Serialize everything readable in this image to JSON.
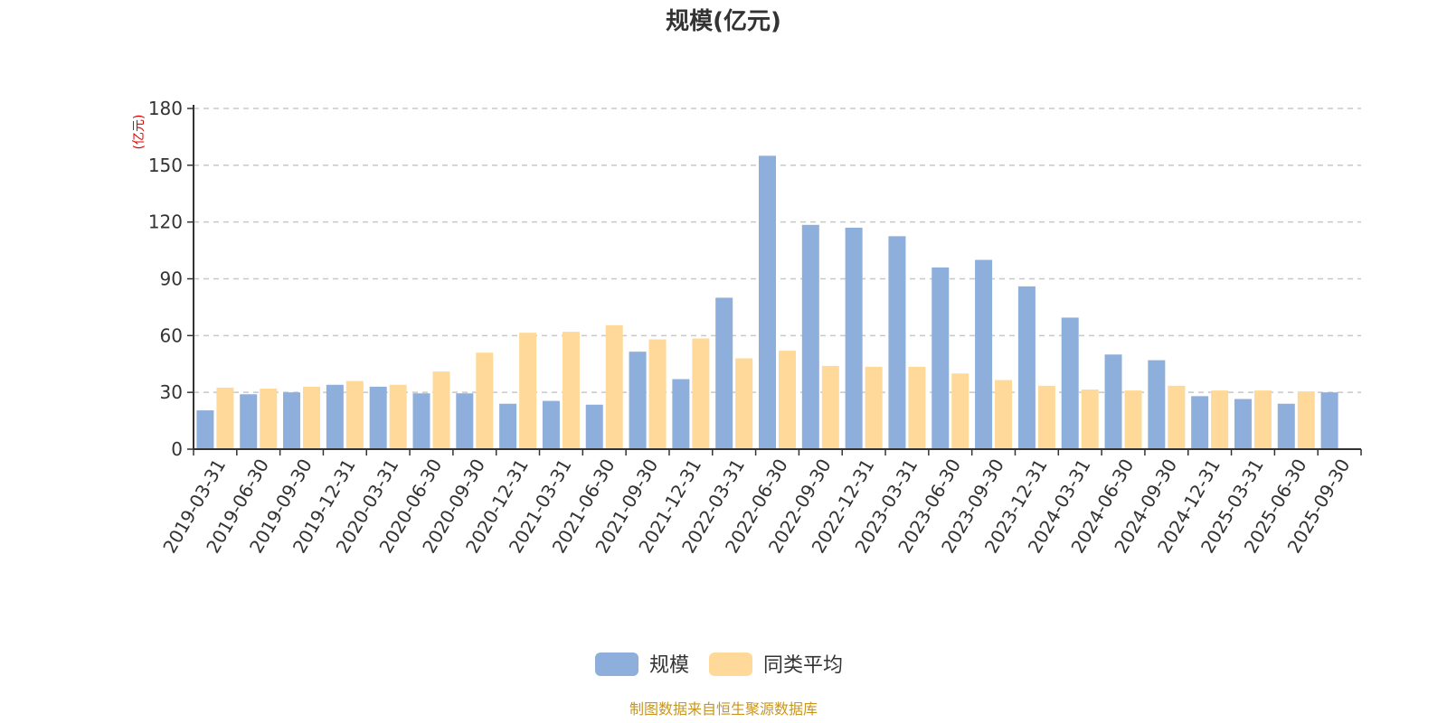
{
  "chart_data": {
    "type": "bar",
    "title": "规模(亿元)",
    "ylabel": "(亿元)",
    "xlabel": "",
    "ylim": [
      0,
      180
    ],
    "yticks": [
      0,
      30,
      60,
      90,
      120,
      150,
      180
    ],
    "grid": true,
    "legend_position": "bottom-center",
    "categories": [
      "2019-03-31",
      "2019-06-30",
      "2019-09-30",
      "2019-12-31",
      "2020-03-31",
      "2020-06-30",
      "2020-09-30",
      "2020-12-31",
      "2021-03-31",
      "2021-06-30",
      "2021-09-30",
      "2021-12-31",
      "2022-03-31",
      "2022-06-30",
      "2022-09-30",
      "2022-12-31",
      "2023-03-31",
      "2023-06-30",
      "2023-09-30",
      "2023-12-31",
      "2024-03-31",
      "2024-06-30",
      "2024-09-30",
      "2024-12-31",
      "2025-03-31",
      "2025-06-30",
      "2025-09-30"
    ],
    "series": [
      {
        "name": "规模",
        "color": "#8eaedb",
        "values": [
          20.5,
          29,
          30,
          34,
          33,
          29.5,
          29.5,
          24,
          25.5,
          23.5,
          51.5,
          37,
          80,
          155,
          118.5,
          117,
          112.5,
          96,
          100,
          86,
          69.5,
          50,
          47,
          28,
          26.5,
          24,
          30
        ]
      },
      {
        "name": "同类平均",
        "color": "#fed999",
        "values": [
          32.5,
          32,
          33,
          36,
          34,
          41,
          51,
          61.5,
          62,
          65.5,
          58,
          58.5,
          48,
          52,
          44,
          43.5,
          43.5,
          40,
          36.5,
          33.5,
          31.5,
          31,
          33.5,
          31,
          31,
          30.5,
          null
        ]
      }
    ],
    "source": "制图数据来自恒生聚源数据库"
  }
}
